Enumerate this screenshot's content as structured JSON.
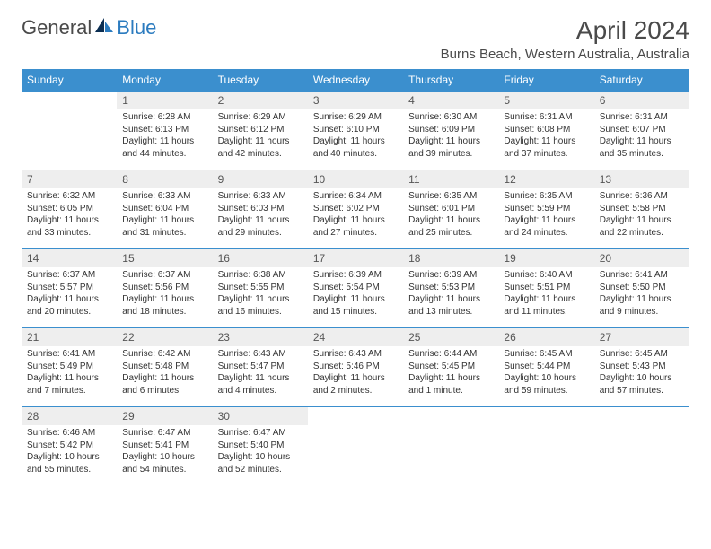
{
  "brand": {
    "part1": "General",
    "part2": "Blue"
  },
  "title": "April 2024",
  "location": "Burns Beach, Western Australia, Australia",
  "colors": {
    "header_bg": "#3b8fce",
    "header_text": "#ffffff",
    "daynum_bg": "#eeeeee",
    "border": "#3b8fce",
    "text": "#333333",
    "brand_blue": "#2b7bbf"
  },
  "weekdays": [
    "Sunday",
    "Monday",
    "Tuesday",
    "Wednesday",
    "Thursday",
    "Friday",
    "Saturday"
  ],
  "weeks": [
    [
      {
        "n": "",
        "sunrise": "",
        "sunset": "",
        "daylight": ""
      },
      {
        "n": "1",
        "sunrise": "Sunrise: 6:28 AM",
        "sunset": "Sunset: 6:13 PM",
        "daylight": "Daylight: 11 hours and 44 minutes."
      },
      {
        "n": "2",
        "sunrise": "Sunrise: 6:29 AM",
        "sunset": "Sunset: 6:12 PM",
        "daylight": "Daylight: 11 hours and 42 minutes."
      },
      {
        "n": "3",
        "sunrise": "Sunrise: 6:29 AM",
        "sunset": "Sunset: 6:10 PM",
        "daylight": "Daylight: 11 hours and 40 minutes."
      },
      {
        "n": "4",
        "sunrise": "Sunrise: 6:30 AM",
        "sunset": "Sunset: 6:09 PM",
        "daylight": "Daylight: 11 hours and 39 minutes."
      },
      {
        "n": "5",
        "sunrise": "Sunrise: 6:31 AM",
        "sunset": "Sunset: 6:08 PM",
        "daylight": "Daylight: 11 hours and 37 minutes."
      },
      {
        "n": "6",
        "sunrise": "Sunrise: 6:31 AM",
        "sunset": "Sunset: 6:07 PM",
        "daylight": "Daylight: 11 hours and 35 minutes."
      }
    ],
    [
      {
        "n": "7",
        "sunrise": "Sunrise: 6:32 AM",
        "sunset": "Sunset: 6:05 PM",
        "daylight": "Daylight: 11 hours and 33 minutes."
      },
      {
        "n": "8",
        "sunrise": "Sunrise: 6:33 AM",
        "sunset": "Sunset: 6:04 PM",
        "daylight": "Daylight: 11 hours and 31 minutes."
      },
      {
        "n": "9",
        "sunrise": "Sunrise: 6:33 AM",
        "sunset": "Sunset: 6:03 PM",
        "daylight": "Daylight: 11 hours and 29 minutes."
      },
      {
        "n": "10",
        "sunrise": "Sunrise: 6:34 AM",
        "sunset": "Sunset: 6:02 PM",
        "daylight": "Daylight: 11 hours and 27 minutes."
      },
      {
        "n": "11",
        "sunrise": "Sunrise: 6:35 AM",
        "sunset": "Sunset: 6:01 PM",
        "daylight": "Daylight: 11 hours and 25 minutes."
      },
      {
        "n": "12",
        "sunrise": "Sunrise: 6:35 AM",
        "sunset": "Sunset: 5:59 PM",
        "daylight": "Daylight: 11 hours and 24 minutes."
      },
      {
        "n": "13",
        "sunrise": "Sunrise: 6:36 AM",
        "sunset": "Sunset: 5:58 PM",
        "daylight": "Daylight: 11 hours and 22 minutes."
      }
    ],
    [
      {
        "n": "14",
        "sunrise": "Sunrise: 6:37 AM",
        "sunset": "Sunset: 5:57 PM",
        "daylight": "Daylight: 11 hours and 20 minutes."
      },
      {
        "n": "15",
        "sunrise": "Sunrise: 6:37 AM",
        "sunset": "Sunset: 5:56 PM",
        "daylight": "Daylight: 11 hours and 18 minutes."
      },
      {
        "n": "16",
        "sunrise": "Sunrise: 6:38 AM",
        "sunset": "Sunset: 5:55 PM",
        "daylight": "Daylight: 11 hours and 16 minutes."
      },
      {
        "n": "17",
        "sunrise": "Sunrise: 6:39 AM",
        "sunset": "Sunset: 5:54 PM",
        "daylight": "Daylight: 11 hours and 15 minutes."
      },
      {
        "n": "18",
        "sunrise": "Sunrise: 6:39 AM",
        "sunset": "Sunset: 5:53 PM",
        "daylight": "Daylight: 11 hours and 13 minutes."
      },
      {
        "n": "19",
        "sunrise": "Sunrise: 6:40 AM",
        "sunset": "Sunset: 5:51 PM",
        "daylight": "Daylight: 11 hours and 11 minutes."
      },
      {
        "n": "20",
        "sunrise": "Sunrise: 6:41 AM",
        "sunset": "Sunset: 5:50 PM",
        "daylight": "Daylight: 11 hours and 9 minutes."
      }
    ],
    [
      {
        "n": "21",
        "sunrise": "Sunrise: 6:41 AM",
        "sunset": "Sunset: 5:49 PM",
        "daylight": "Daylight: 11 hours and 7 minutes."
      },
      {
        "n": "22",
        "sunrise": "Sunrise: 6:42 AM",
        "sunset": "Sunset: 5:48 PM",
        "daylight": "Daylight: 11 hours and 6 minutes."
      },
      {
        "n": "23",
        "sunrise": "Sunrise: 6:43 AM",
        "sunset": "Sunset: 5:47 PM",
        "daylight": "Daylight: 11 hours and 4 minutes."
      },
      {
        "n": "24",
        "sunrise": "Sunrise: 6:43 AM",
        "sunset": "Sunset: 5:46 PM",
        "daylight": "Daylight: 11 hours and 2 minutes."
      },
      {
        "n": "25",
        "sunrise": "Sunrise: 6:44 AM",
        "sunset": "Sunset: 5:45 PM",
        "daylight": "Daylight: 11 hours and 1 minute."
      },
      {
        "n": "26",
        "sunrise": "Sunrise: 6:45 AM",
        "sunset": "Sunset: 5:44 PM",
        "daylight": "Daylight: 10 hours and 59 minutes."
      },
      {
        "n": "27",
        "sunrise": "Sunrise: 6:45 AM",
        "sunset": "Sunset: 5:43 PM",
        "daylight": "Daylight: 10 hours and 57 minutes."
      }
    ],
    [
      {
        "n": "28",
        "sunrise": "Sunrise: 6:46 AM",
        "sunset": "Sunset: 5:42 PM",
        "daylight": "Daylight: 10 hours and 55 minutes."
      },
      {
        "n": "29",
        "sunrise": "Sunrise: 6:47 AM",
        "sunset": "Sunset: 5:41 PM",
        "daylight": "Daylight: 10 hours and 54 minutes."
      },
      {
        "n": "30",
        "sunrise": "Sunrise: 6:47 AM",
        "sunset": "Sunset: 5:40 PM",
        "daylight": "Daylight: 10 hours and 52 minutes."
      },
      {
        "n": "",
        "sunrise": "",
        "sunset": "",
        "daylight": ""
      },
      {
        "n": "",
        "sunrise": "",
        "sunset": "",
        "daylight": ""
      },
      {
        "n": "",
        "sunrise": "",
        "sunset": "",
        "daylight": ""
      },
      {
        "n": "",
        "sunrise": "",
        "sunset": "",
        "daylight": ""
      }
    ]
  ]
}
